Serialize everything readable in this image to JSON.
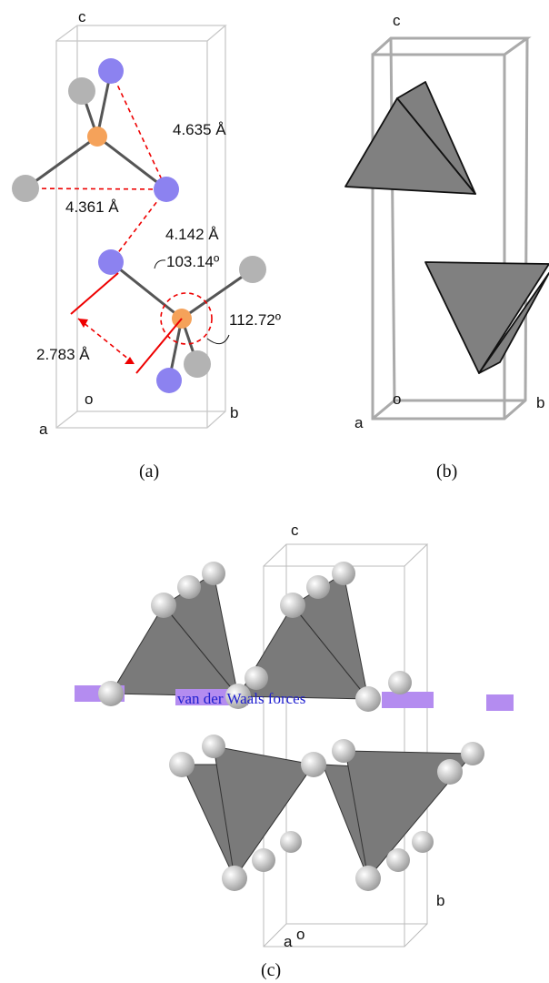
{
  "panels": [
    {
      "caption": "(a)",
      "axes": {
        "c": "c",
        "o": "o",
        "a": "a",
        "b": "b"
      },
      "annotations": [
        "4.635 Å",
        "4.361 Å",
        "4.142 Å",
        "103.14º",
        "112.72º",
        "2.783 Å"
      ]
    },
    {
      "caption": "(b)",
      "axes": {
        "c": "c",
        "o": "o",
        "a": "a",
        "b": "b"
      }
    },
    {
      "caption": "(c)",
      "axes": {
        "c": "c",
        "a": "a",
        "o": "o",
        "b": "b"
      },
      "annotations": [
        "van der Waals forces"
      ]
    }
  ]
}
